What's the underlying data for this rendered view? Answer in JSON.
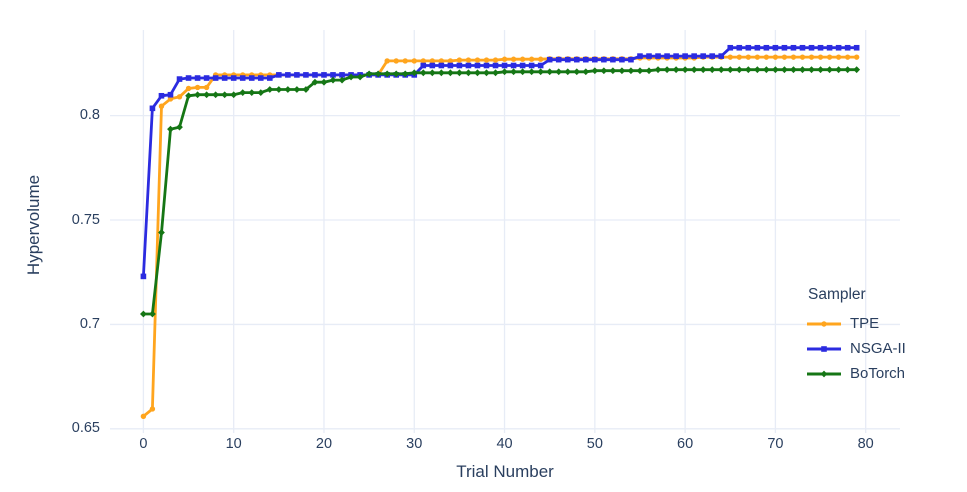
{
  "page": {
    "background": "#ffffff"
  },
  "text_color": "#2a3f5f",
  "grid_color": "#e7ecf6",
  "legend": {
    "title": "Sampler"
  },
  "chart_data": {
    "type": "line",
    "title": "",
    "xlabel": "Trial Number",
    "ylabel": "Hypervolume",
    "x_ticks": [
      0,
      10,
      20,
      30,
      40,
      50,
      60,
      70,
      80
    ],
    "y_ticks": [
      0.65,
      0.7,
      0.75,
      0.8
    ],
    "y_tick_labels": [
      "0.65",
      "0.7",
      "0.75",
      "0.8"
    ],
    "x_range": [
      -3.7,
      83.8
    ],
    "y_range": [
      0.648,
      0.841
    ],
    "grid": true,
    "legend_position": "right",
    "n_trials": 80,
    "series_note": "step_points are [trial, best-hypervolume-so-far]; value holds until next breakpoint; markers at every trial 0-79",
    "series": [
      {
        "name": "TPE",
        "color": "#ffa51e",
        "marker": "circle",
        "step_points": [
          [
            0,
            0.656
          ],
          [
            1,
            0.6595
          ],
          [
            2,
            0.8045
          ],
          [
            3,
            0.808
          ],
          [
            4,
            0.809
          ],
          [
            5,
            0.813
          ],
          [
            6,
            0.8135
          ],
          [
            8,
            0.8195
          ],
          [
            27,
            0.8262
          ],
          [
            35,
            0.8266
          ],
          [
            40,
            0.827
          ],
          [
            45,
            0.8272
          ],
          [
            55,
            0.8276
          ],
          [
            62,
            0.828
          ]
        ]
      },
      {
        "name": "NSGA-II",
        "color": "#2b2be0",
        "marker": "square",
        "step_points": [
          [
            0,
            0.723
          ],
          [
            1,
            0.8035
          ],
          [
            2,
            0.8095
          ],
          [
            3,
            0.81
          ],
          [
            4,
            0.8175
          ],
          [
            5,
            0.818
          ],
          [
            15,
            0.8195
          ],
          [
            31,
            0.824
          ],
          [
            45,
            0.8268
          ],
          [
            55,
            0.8285
          ],
          [
            65,
            0.8325
          ]
        ]
      },
      {
        "name": "BoTorch",
        "color": "#157615",
        "marker": "diamond",
        "step_points": [
          [
            0,
            0.705
          ],
          [
            1,
            0.705
          ],
          [
            2,
            0.744
          ],
          [
            3,
            0.7935
          ],
          [
            4,
            0.7945
          ],
          [
            5,
            0.8095
          ],
          [
            6,
            0.81
          ],
          [
            11,
            0.811
          ],
          [
            14,
            0.8125
          ],
          [
            19,
            0.816
          ],
          [
            21,
            0.817
          ],
          [
            23,
            0.8185
          ],
          [
            25,
            0.82
          ],
          [
            30,
            0.8205
          ],
          [
            40,
            0.821
          ],
          [
            50,
            0.8215
          ],
          [
            57,
            0.822
          ]
        ]
      }
    ]
  }
}
